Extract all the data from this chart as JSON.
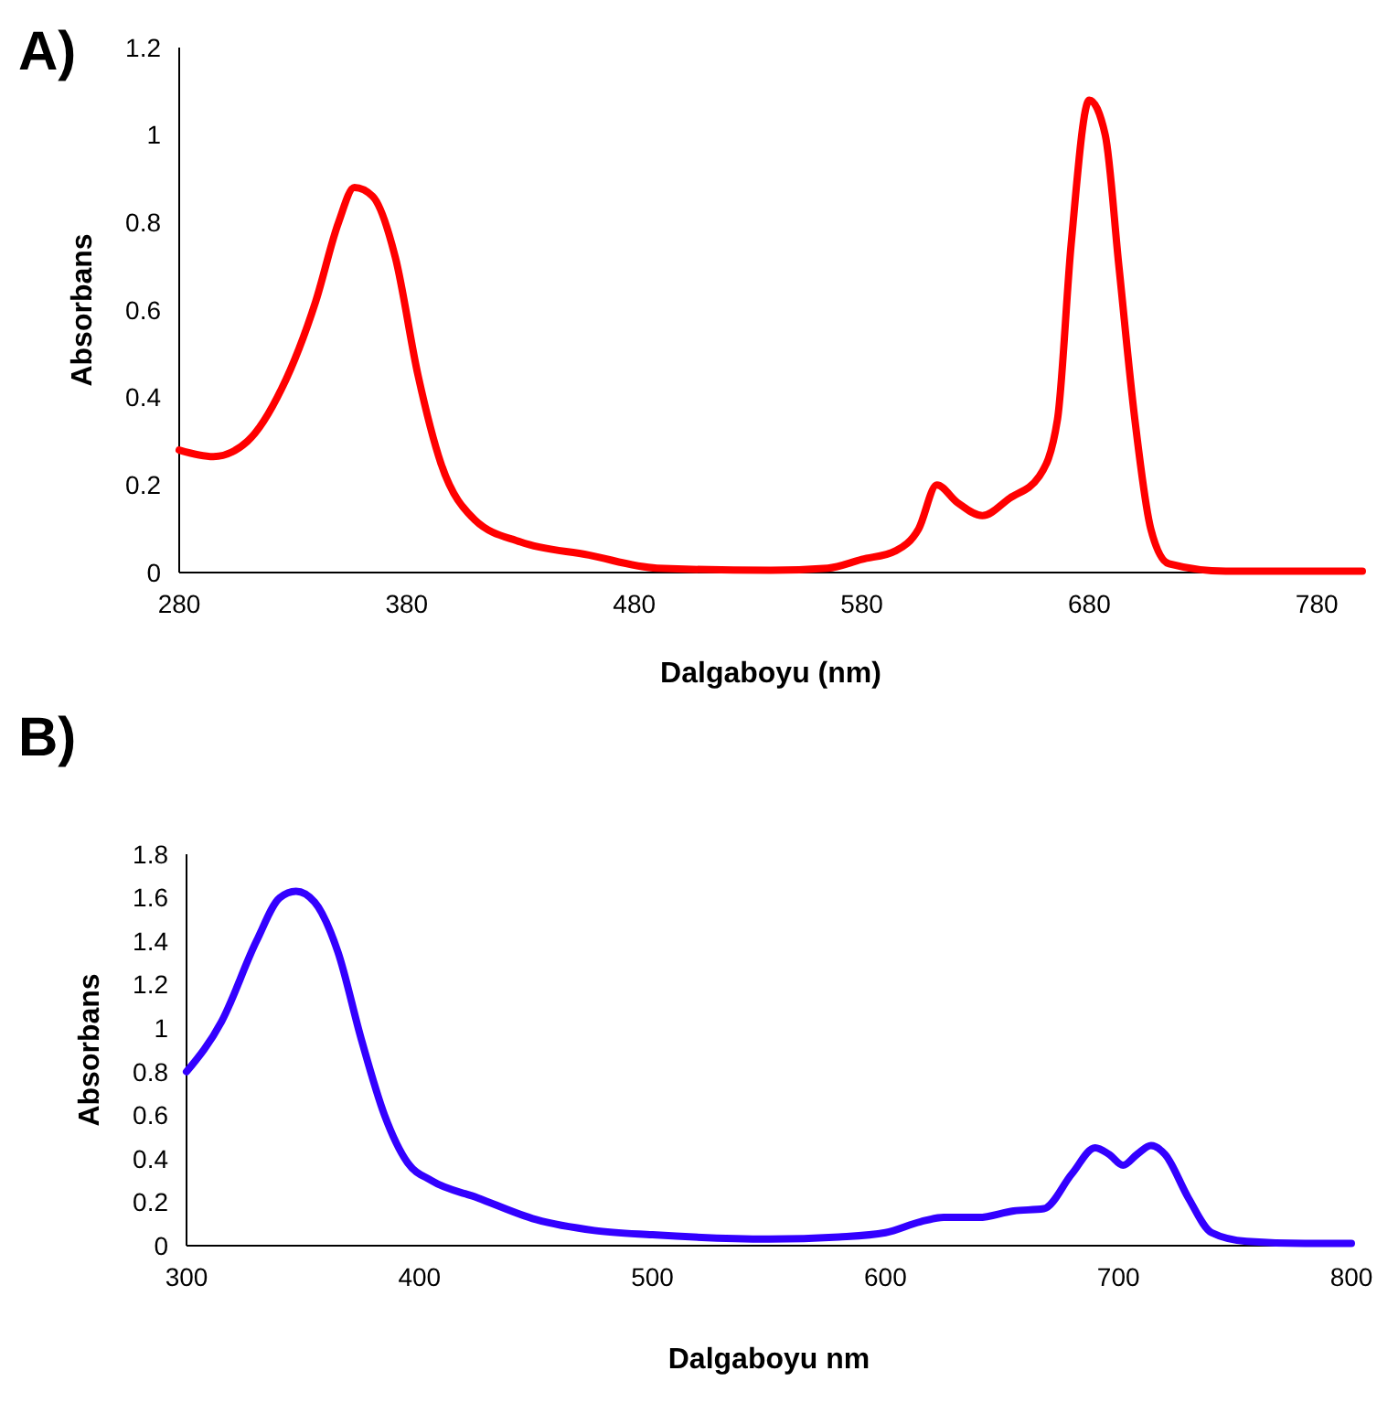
{
  "chart_data": [
    {
      "type": "line",
      "title": "A)",
      "xlabel": "Dalgaboyu (nm)",
      "ylabel": "Absorbans",
      "xlim": [
        280,
        800
      ],
      "xticks": [
        280,
        380,
        480,
        580,
        680,
        780
      ],
      "ylim": [
        0,
        1.2
      ],
      "yticks": [
        0,
        0.2,
        0.4,
        0.6,
        0.8,
        1,
        1.2
      ],
      "grid": false,
      "marker": "none",
      "line_style": "solid",
      "series": [
        {
          "color": "#ff0000",
          "x": [
            280,
            295,
            310,
            325,
            340,
            350,
            357,
            365,
            375,
            385,
            395,
            410,
            430,
            460,
            490,
            540,
            565,
            580,
            595,
            605,
            613,
            622,
            633,
            645,
            658,
            666,
            672,
            680,
            687,
            693,
            700,
            707,
            715,
            740,
            800
          ],
          "values": [
            0.28,
            0.265,
            0.3,
            0.42,
            0.62,
            0.8,
            0.88,
            0.86,
            0.72,
            0.45,
            0.25,
            0.12,
            0.07,
            0.04,
            0.01,
            0.005,
            0.01,
            0.03,
            0.05,
            0.1,
            0.2,
            0.16,
            0.13,
            0.17,
            0.22,
            0.35,
            0.75,
            1.08,
            1,
            0.7,
            0.35,
            0.1,
            0.02,
            0.003,
            0.003
          ]
        }
      ]
    },
    {
      "type": "line",
      "title": "B)",
      "xlabel": "Dalgaboyu nm",
      "ylabel": "Absorbans",
      "xlim": [
        300,
        800
      ],
      "xticks": [
        300,
        400,
        500,
        600,
        700,
        800
      ],
      "ylim": [
        0,
        1.8
      ],
      "yticks": [
        0,
        0.2,
        0.4,
        0.6,
        0.8,
        1,
        1.2,
        1.4,
        1.6,
        1.8
      ],
      "grid": false,
      "marker": "none",
      "line_style": "solid",
      "series": [
        {
          "color": "#3300ff",
          "x": [
            300,
            315,
            330,
            340,
            347,
            355,
            365,
            375,
            385,
            395,
            405,
            425,
            450,
            475,
            500,
            550,
            580,
            600,
            615,
            625,
            640,
            655,
            668,
            680,
            690,
            696,
            702,
            708,
            714,
            720,
            730,
            740,
            755,
            780,
            800
          ],
          "values": [
            0.8,
            1.03,
            1.4,
            1.6,
            1.63,
            1.58,
            1.35,
            0.95,
            0.6,
            0.38,
            0.3,
            0.22,
            0.12,
            0.07,
            0.05,
            0.03,
            0.04,
            0.06,
            0.11,
            0.13,
            0.13,
            0.16,
            0.17,
            0.33,
            0.45,
            0.42,
            0.37,
            0.42,
            0.46,
            0.42,
            0.22,
            0.06,
            0.02,
            0.01,
            0.01
          ]
        }
      ]
    }
  ]
}
